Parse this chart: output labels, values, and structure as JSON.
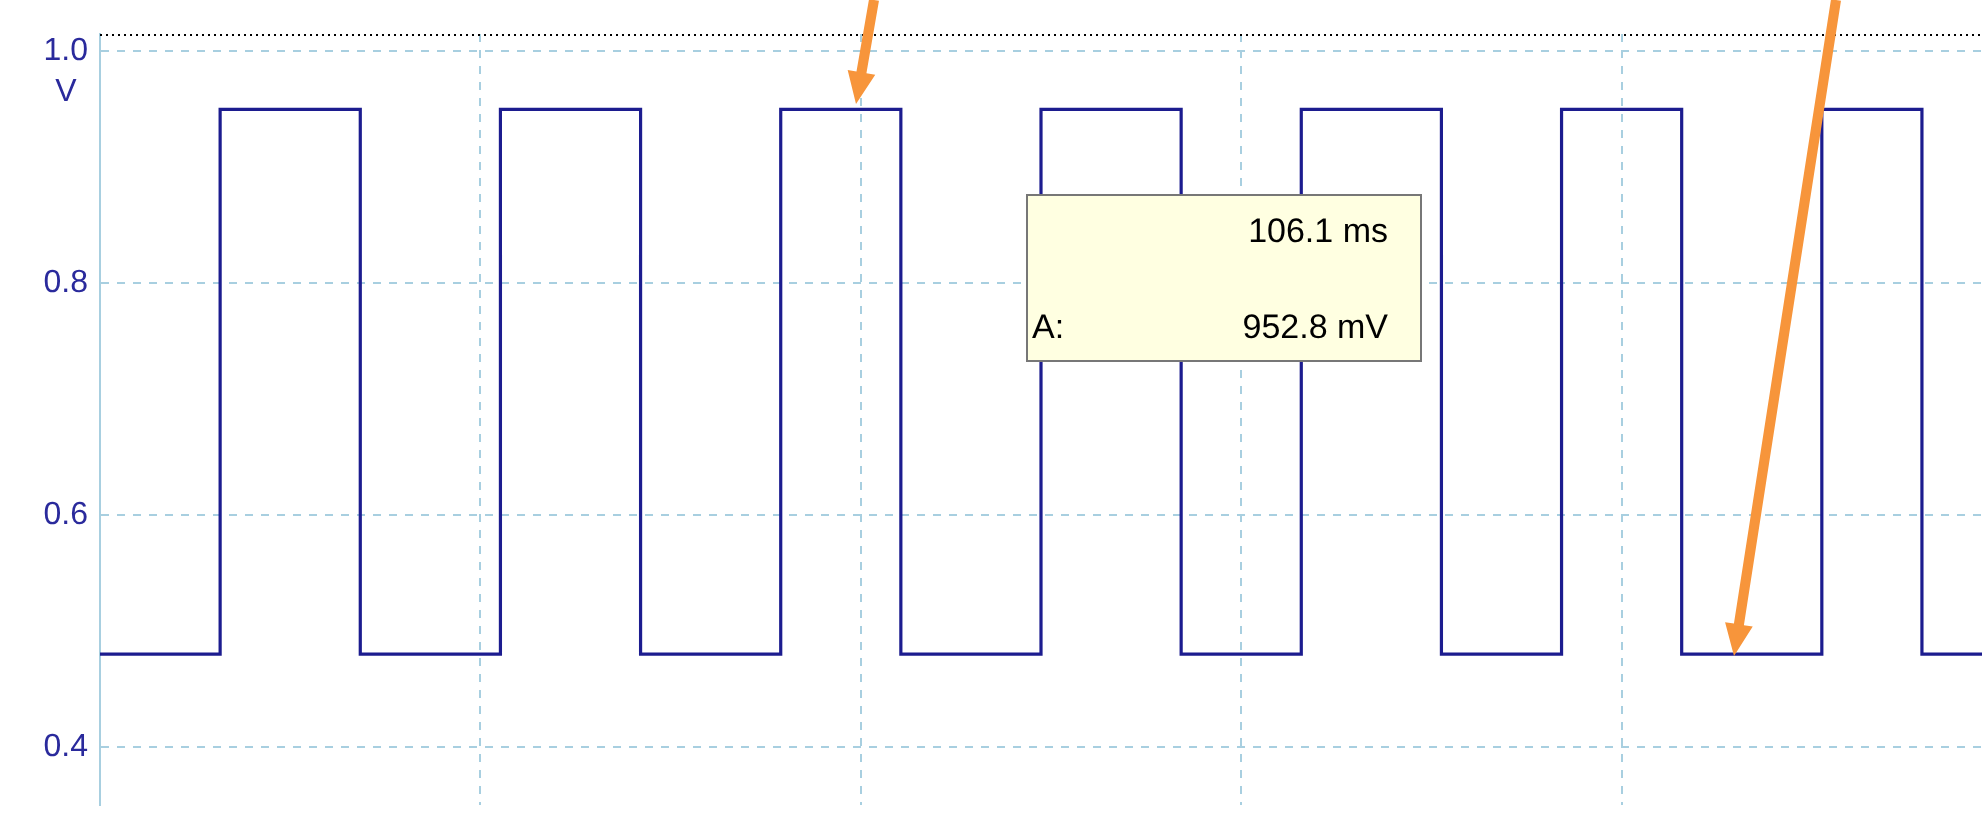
{
  "chart_data": {
    "type": "step",
    "categories": [
      null,
      null,
      null,
      null,
      null,
      null,
      null,
      null,
      null,
      null,
      null,
      null,
      null,
      null,
      null,
      null,
      null,
      null,
      null,
      null,
      null,
      null,
      null,
      null,
      null,
      null,
      null,
      null,
      null,
      null,
      null,
      null,
      null,
      null,
      null,
      null,
      null,
      null,
      null,
      null,
      null,
      null,
      null,
      null,
      null,
      null,
      null,
      null,
      null,
      null,
      null,
      null,
      null,
      null,
      null,
      null,
      null,
      null,
      null,
      null,
      null,
      null,
      null,
      null,
      null,
      null,
      null,
      null,
      null,
      null,
      null,
      null,
      null,
      null,
      null,
      null,
      null,
      null,
      null,
      null,
      null,
      null,
      null,
      null,
      null,
      null,
      null,
      null,
      null,
      null,
      null,
      null,
      null,
      null,
      null
    ],
    "series": [
      {
        "color": "#1c1c8f",
        "values": [
          0.48,
          0.48,
          0.48,
          0.48,
          0.48,
          0.48,
          0.48,
          0.95,
          0.95,
          0.95,
          0.95,
          0.95,
          0.95,
          0.95,
          0.48,
          0.48,
          0.48,
          0.48,
          0.48,
          0.48,
          0.48,
          0.95,
          0.95,
          0.95,
          0.95,
          0.95,
          0.95,
          0.95,
          0.48,
          0.48,
          0.48,
          0.48,
          0.48,
          0.48,
          0.48,
          0.95,
          0.95,
          0.95,
          0.95,
          0.95,
          0.95,
          0.48,
          0.48,
          0.48,
          0.48,
          0.48,
          0.48,
          0.48,
          0.95,
          0.95,
          0.95,
          0.95,
          0.95,
          0.95,
          0.95,
          0.48,
          0.48,
          0.48,
          0.48,
          0.48,
          0.48,
          0.95,
          0.95,
          0.95,
          0.95,
          0.95,
          0.95,
          0.95,
          0.48,
          0.48,
          0.48,
          0.48,
          0.48,
          0.48,
          0.95,
          0.95,
          0.95,
          0.95,
          0.95,
          0.95,
          0.48,
          0.48,
          0.48,
          0.48,
          0.48,
          0.48,
          0.48,
          0.95,
          0.95,
          0.95,
          0.95,
          0.95,
          0.48,
          0.48,
          0.48
        ]
      }
    ],
    "ylabel": "V",
    "ylim": [
      0.35,
      1.015
    ],
    "yticks": [
      0.4,
      0.6,
      0.8,
      {
        "value": 1,
        "label": "1.0"
      }
    ],
    "grid": true,
    "tick_labels": "y",
    "annotations": [
      "106.1 ms",
      "A:",
      "952.8 mV"
    ]
  }
}
